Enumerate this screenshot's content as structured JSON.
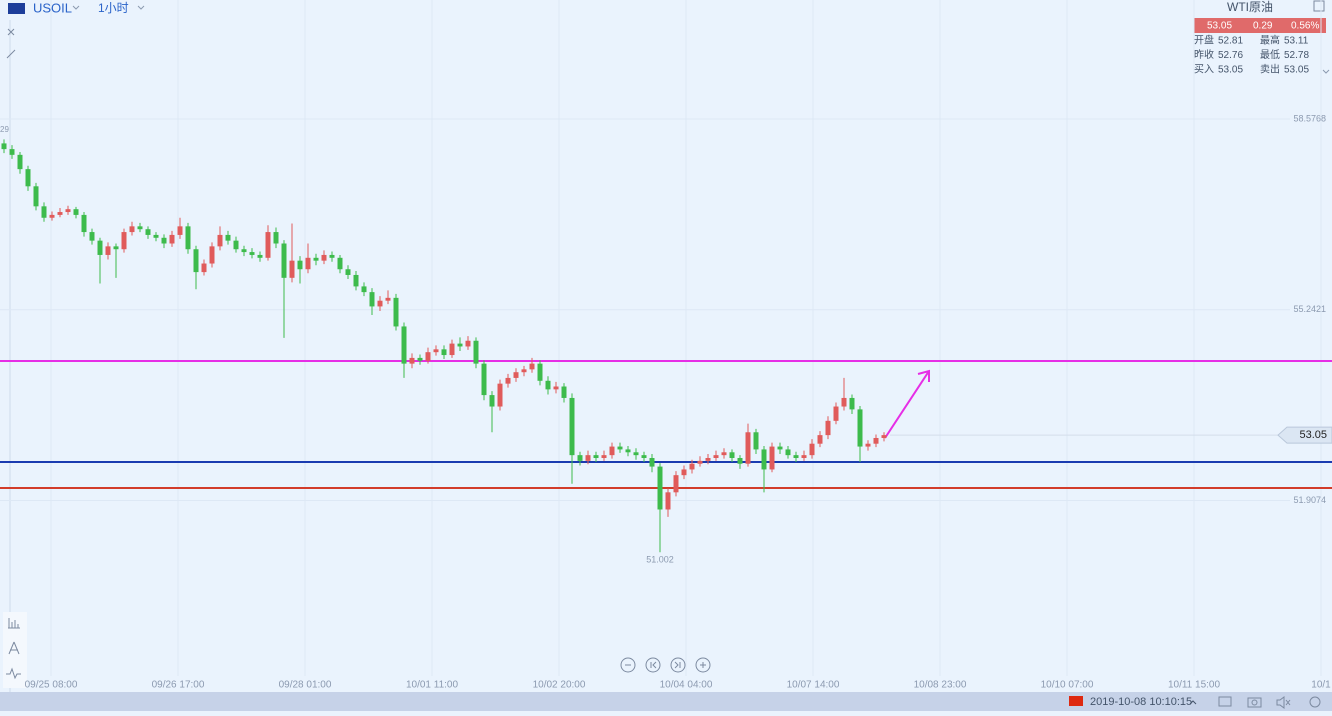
{
  "header": {
    "symbol": "USOIL",
    "interval": "1小时"
  },
  "quote": {
    "name": "WTI原油",
    "price": 53.05,
    "change": 0.29,
    "change_pct": {
      "value": 0.56,
      "label": "0.56%"
    },
    "fields": [
      {
        "name": "开盘",
        "value": 52.81
      },
      {
        "name": "最高",
        "value": 53.11
      },
      {
        "name": "昨收",
        "value": 52.76
      },
      {
        "name": "最低",
        "value": 52.78
      },
      {
        "name": "买入",
        "value": 53.05
      },
      {
        "name": "卖出",
        "value": 53.05
      }
    ]
  },
  "chart_data": {
    "type": "candlestick",
    "up_color": "#e05b5b",
    "down_color": "#3dbb4c",
    "ylim": [
      48.839,
      60.657
    ],
    "yticks": [
      58.5768,
      55.2421,
      51.9074
    ],
    "grid": true,
    "xlabels": [
      "09/25 08:00",
      "09/26 17:00",
      "09/28 01:00",
      "10/01 11:00",
      "10/02 20:00",
      "10/04 04:00",
      "10/07 14:00",
      "10/08 23:00",
      "10/10 07:00",
      "10/11 15:00",
      "10/1"
    ],
    "high_label": "29",
    "last_price": 53.05,
    "lines": [
      {
        "value": 54.346,
        "color": "#e62ee6"
      },
      {
        "value": 52.58,
        "color": "#1a3bb0"
      },
      {
        "value": 52.125,
        "color": "#d23c2a"
      }
    ],
    "ohlc": [
      [
        58.15,
        58.22,
        57.98,
        58.05
      ],
      [
        58.05,
        58.12,
        57.88,
        57.95
      ],
      [
        57.95,
        58.0,
        57.62,
        57.7
      ],
      [
        57.7,
        57.76,
        57.32,
        57.4
      ],
      [
        57.4,
        57.46,
        56.98,
        57.05
      ],
      [
        57.05,
        57.12,
        56.78,
        56.85
      ],
      [
        56.85,
        56.96,
        56.8,
        56.9
      ],
      [
        56.9,
        57.02,
        56.86,
        56.95
      ],
      [
        56.95,
        57.06,
        56.9,
        57.0
      ],
      [
        57.0,
        57.04,
        56.84,
        56.9
      ],
      [
        56.9,
        56.95,
        56.52,
        56.6
      ],
      [
        56.6,
        56.66,
        56.38,
        56.45
      ],
      [
        56.45,
        56.5,
        55.7,
        56.2
      ],
      [
        56.2,
        56.42,
        56.12,
        56.35
      ],
      [
        56.35,
        56.4,
        55.8,
        56.3
      ],
      [
        56.3,
        56.66,
        56.24,
        56.6
      ],
      [
        56.6,
        56.78,
        56.54,
        56.7
      ],
      [
        56.7,
        56.76,
        56.6,
        56.65
      ],
      [
        56.65,
        56.7,
        56.48,
        56.55
      ],
      [
        56.55,
        56.6,
        56.44,
        56.5
      ],
      [
        56.5,
        56.56,
        56.32,
        56.4
      ],
      [
        56.4,
        56.62,
        56.34,
        56.55
      ],
      [
        56.55,
        56.85,
        56.48,
        56.7
      ],
      [
        56.7,
        56.76,
        56.22,
        56.3
      ],
      [
        56.3,
        56.36,
        55.6,
        55.9
      ],
      [
        55.9,
        56.12,
        55.84,
        56.05
      ],
      [
        56.05,
        56.42,
        55.98,
        56.35
      ],
      [
        56.35,
        56.7,
        56.28,
        56.55
      ],
      [
        56.55,
        56.62,
        56.38,
        56.45
      ],
      [
        56.45,
        56.52,
        56.24,
        56.3
      ],
      [
        56.3,
        56.36,
        56.18,
        56.25
      ],
      [
        56.25,
        56.32,
        56.14,
        56.2
      ],
      [
        56.2,
        56.26,
        56.08,
        56.15
      ],
      [
        56.15,
        56.72,
        56.1,
        56.6
      ],
      [
        56.6,
        56.68,
        56.32,
        56.4
      ],
      [
        56.4,
        56.46,
        54.75,
        55.8
      ],
      [
        55.8,
        56.75,
        55.72,
        56.1
      ],
      [
        56.1,
        56.18,
        55.7,
        55.95
      ],
      [
        55.95,
        56.4,
        55.88,
        56.15
      ],
      [
        56.15,
        56.22,
        56.02,
        56.1
      ],
      [
        56.1,
        56.28,
        56.04,
        56.2
      ],
      [
        56.2,
        56.26,
        56.08,
        56.15
      ],
      [
        56.15,
        56.2,
        55.88,
        55.95
      ],
      [
        55.95,
        56.02,
        55.78,
        55.85
      ],
      [
        55.85,
        55.92,
        55.58,
        55.65
      ],
      [
        55.65,
        55.72,
        55.48,
        55.55
      ],
      [
        55.55,
        55.62,
        55.15,
        55.3
      ],
      [
        55.3,
        55.48,
        55.22,
        55.4
      ],
      [
        55.4,
        55.58,
        55.34,
        55.45
      ],
      [
        55.45,
        55.52,
        54.88,
        54.95
      ],
      [
        54.95,
        55.02,
        54.05,
        54.3
      ],
      [
        54.3,
        54.48,
        54.22,
        54.4
      ],
      [
        54.4,
        54.46,
        54.28,
        54.35
      ],
      [
        54.35,
        54.58,
        54.3,
        54.5
      ],
      [
        54.5,
        54.62,
        54.44,
        54.55
      ],
      [
        54.55,
        54.62,
        54.38,
        54.45
      ],
      [
        54.45,
        54.72,
        54.4,
        54.65
      ],
      [
        54.65,
        54.76,
        54.52,
        54.6
      ],
      [
        54.6,
        54.78,
        54.54,
        54.7
      ],
      [
        54.7,
        54.76,
        54.22,
        54.3
      ],
      [
        54.3,
        54.36,
        53.66,
        53.75
      ],
      [
        53.75,
        53.82,
        53.1,
        53.55
      ],
      [
        53.55,
        54.02,
        53.48,
        53.95
      ],
      [
        53.95,
        54.12,
        53.88,
        54.05
      ],
      [
        54.05,
        54.22,
        53.98,
        54.15
      ],
      [
        54.15,
        54.26,
        54.08,
        54.2
      ],
      [
        54.2,
        54.4,
        54.14,
        54.3
      ],
      [
        54.3,
        54.36,
        53.92,
        54.0
      ],
      [
        54.0,
        54.08,
        53.76,
        53.85
      ],
      [
        53.85,
        53.98,
        53.78,
        53.9
      ],
      [
        53.9,
        53.96,
        53.62,
        53.7
      ],
      [
        53.7,
        53.78,
        52.2,
        52.7
      ],
      [
        52.7,
        52.76,
        52.52,
        52.6
      ],
      [
        52.6,
        52.78,
        52.54,
        52.7
      ],
      [
        52.7,
        52.76,
        52.58,
        52.65
      ],
      [
        52.65,
        52.78,
        52.6,
        52.7
      ],
      [
        52.7,
        52.92,
        52.64,
        52.85
      ],
      [
        52.85,
        52.92,
        52.74,
        52.8
      ],
      [
        52.8,
        52.86,
        52.68,
        52.75
      ],
      [
        52.75,
        52.82,
        52.62,
        52.7
      ],
      [
        52.7,
        52.76,
        52.58,
        52.65
      ],
      [
        52.65,
        52.72,
        52.4,
        52.5
      ],
      [
        52.5,
        52.56,
        51.002,
        51.75
      ],
      [
        51.75,
        52.12,
        51.62,
        52.05
      ],
      [
        52.05,
        52.42,
        51.98,
        52.35
      ],
      [
        52.35,
        52.52,
        52.28,
        52.45
      ],
      [
        52.45,
        52.62,
        52.38,
        52.55
      ],
      [
        52.55,
        52.68,
        52.5,
        52.6
      ],
      [
        52.6,
        52.72,
        52.54,
        52.65
      ],
      [
        52.65,
        52.78,
        52.6,
        52.7
      ],
      [
        52.7,
        52.82,
        52.64,
        52.75
      ],
      [
        52.75,
        52.8,
        52.58,
        52.65
      ],
      [
        52.65,
        52.7,
        52.46,
        52.55
      ],
      [
        52.55,
        53.25,
        52.5,
        53.1
      ],
      [
        53.1,
        53.16,
        52.72,
        52.8
      ],
      [
        52.8,
        52.86,
        52.05,
        52.45
      ],
      [
        52.45,
        52.92,
        52.4,
        52.85
      ],
      [
        52.85,
        52.92,
        52.72,
        52.8
      ],
      [
        52.8,
        52.86,
        52.64,
        52.7
      ],
      [
        52.7,
        52.76,
        52.58,
        52.65
      ],
      [
        52.65,
        52.78,
        52.6,
        52.7
      ],
      [
        52.7,
        52.98,
        52.64,
        52.9
      ],
      [
        52.9,
        53.12,
        52.84,
        53.05
      ],
      [
        53.05,
        53.38,
        52.98,
        53.3
      ],
      [
        53.3,
        53.62,
        53.24,
        53.55
      ],
      [
        53.55,
        54.05,
        53.48,
        53.7
      ],
      [
        53.7,
        53.76,
        53.42,
        53.5
      ],
      [
        53.5,
        53.56,
        52.58,
        52.85
      ],
      [
        52.85,
        52.96,
        52.78,
        52.9
      ],
      [
        52.9,
        53.06,
        52.84,
        53.0
      ],
      [
        53.0,
        53.1,
        52.94,
        53.05
      ]
    ]
  },
  "footer": {
    "datetime": "2019-10-08 10:10:15"
  }
}
